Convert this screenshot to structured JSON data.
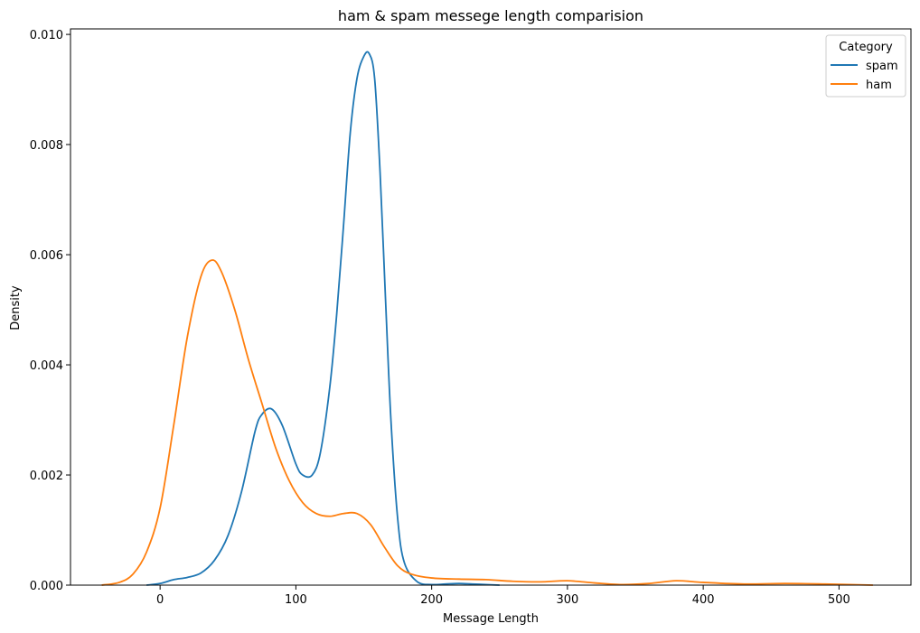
{
  "chart_data": {
    "type": "line",
    "title": "ham & spam messege length comparision",
    "xlabel": "Message Length",
    "ylabel": "Density",
    "xlim": [
      -66,
      553
    ],
    "ylim": [
      0,
      0.0101
    ],
    "xticks": [
      0,
      100,
      200,
      300,
      400,
      500
    ],
    "yticks": [
      0.0,
      0.002,
      0.004,
      0.006,
      0.008,
      0.01
    ],
    "xtick_labels": [
      "0",
      "100",
      "200",
      "300",
      "400",
      "500"
    ],
    "ytick_labels": [
      "0.000",
      "0.002",
      "0.004",
      "0.006",
      "0.008",
      "0.010"
    ],
    "grid": false,
    "legend": {
      "title": "Category",
      "position": "top-right"
    },
    "series": [
      {
        "name": "spam",
        "color": "#1f77b4",
        "x": [
          -10,
          0,
          10,
          20,
          30,
          40,
          50,
          60,
          70,
          75,
          82,
          90,
          100,
          105,
          112,
          118,
          125,
          130,
          135,
          140,
          145,
          150,
          154,
          158,
          162,
          166,
          170,
          175,
          180,
          190,
          200,
          210,
          220,
          230,
          240,
          250
        ],
        "y": [
          0.0,
          3e-05,
          0.0001,
          0.00014,
          0.00022,
          0.00045,
          0.0009,
          0.0017,
          0.0028,
          0.0031,
          0.0032,
          0.0029,
          0.0022,
          0.002,
          0.002,
          0.0024,
          0.0036,
          0.0049,
          0.0065,
          0.0082,
          0.0092,
          0.0096,
          0.00965,
          0.0092,
          0.0075,
          0.0052,
          0.003,
          0.0012,
          0.0004,
          5e-05,
          1e-05,
          2e-05,
          3e-05,
          2e-05,
          1e-05,
          0.0
        ]
      },
      {
        "name": "ham",
        "color": "#ff7f0e",
        "x": [
          -43,
          -30,
          -20,
          -10,
          0,
          10,
          20,
          30,
          38,
          45,
          55,
          65,
          75,
          85,
          95,
          105,
          115,
          125,
          135,
          145,
          155,
          165,
          175,
          185,
          200,
          220,
          240,
          260,
          280,
          300,
          320,
          340,
          360,
          380,
          400,
          430,
          460,
          490,
          525
        ],
        "y": [
          0.0,
          5e-05,
          0.0002,
          0.0006,
          0.0014,
          0.0029,
          0.0045,
          0.0056,
          0.0059,
          0.0057,
          0.005,
          0.0041,
          0.0033,
          0.0025,
          0.0019,
          0.0015,
          0.0013,
          0.00125,
          0.0013,
          0.0013,
          0.0011,
          0.0007,
          0.00035,
          0.0002,
          0.00013,
          0.00011,
          0.0001,
          7e-05,
          6e-05,
          8e-05,
          4e-05,
          1e-05,
          3e-05,
          8e-05,
          5e-05,
          2e-05,
          3e-05,
          2e-05,
          0.0
        ]
      }
    ]
  }
}
